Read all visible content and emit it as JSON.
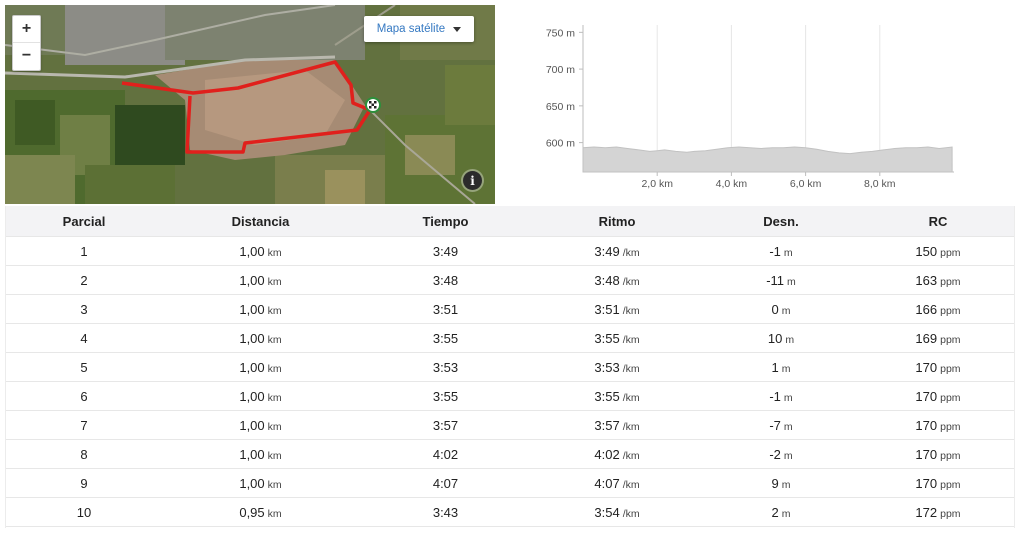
{
  "map": {
    "zoom_in_label": "+",
    "zoom_out_label": "−",
    "maptype_label": "Mapa satélite",
    "info_label": "i",
    "route_color": "#e0201c"
  },
  "chart_data": {
    "type": "area",
    "xlabel": "",
    "ylabel": "",
    "x_ticks": [
      "2,0 km",
      "4,0 km",
      "6,0 km",
      "8,0 km"
    ],
    "x_tick_values": [
      2,
      4,
      6,
      8
    ],
    "y_ticks": [
      "600 m",
      "650 m",
      "700 m",
      "750 m"
    ],
    "y_tick_values": [
      600,
      650,
      700,
      750
    ],
    "xlim": [
      0,
      10
    ],
    "ylim": [
      560,
      760
    ],
    "grid": true,
    "fill_color": "#d4d4d4",
    "series": [
      {
        "x": [
          0,
          0.3,
          0.6,
          0.9,
          1.2,
          1.5,
          1.8,
          2.0,
          2.2,
          2.5,
          2.8,
          3.0,
          3.3,
          3.6,
          3.9,
          4.2,
          4.5,
          4.8,
          5.1,
          5.4,
          5.7,
          6.0,
          6.3,
          6.6,
          6.9,
          7.2,
          7.5,
          7.8,
          8.1,
          8.4,
          8.7,
          9.0,
          9.3,
          9.6,
          9.95
        ],
        "y": [
          593,
          594,
          593,
          594,
          592,
          590,
          588,
          589,
          590,
          588,
          587,
          588,
          589,
          591,
          593,
          594,
          593,
          592,
          593,
          593,
          594,
          593,
          591,
          588,
          586,
          585,
          587,
          588,
          590,
          592,
          593,
          593,
          594,
          592,
          594
        ]
      }
    ]
  },
  "table": {
    "headers": [
      "Parcial",
      "Distancia",
      "Tiempo",
      "Ritmo",
      "Desn.",
      "RC"
    ],
    "rows": [
      {
        "split": "1",
        "distance": "1,00",
        "distance_unit": "km",
        "time": "3:49",
        "pace": "3:49",
        "pace_unit": "/km",
        "elev": "-1",
        "elev_unit": "m",
        "hr": "150",
        "hr_unit": "ppm"
      },
      {
        "split": "2",
        "distance": "1,00",
        "distance_unit": "km",
        "time": "3:48",
        "pace": "3:48",
        "pace_unit": "/km",
        "elev": "-11",
        "elev_unit": "m",
        "hr": "163",
        "hr_unit": "ppm"
      },
      {
        "split": "3",
        "distance": "1,00",
        "distance_unit": "km",
        "time": "3:51",
        "pace": "3:51",
        "pace_unit": "/km",
        "elev": "0",
        "elev_unit": "m",
        "hr": "166",
        "hr_unit": "ppm"
      },
      {
        "split": "4",
        "distance": "1,00",
        "distance_unit": "km",
        "time": "3:55",
        "pace": "3:55",
        "pace_unit": "/km",
        "elev": "10",
        "elev_unit": "m",
        "hr": "169",
        "hr_unit": "ppm"
      },
      {
        "split": "5",
        "distance": "1,00",
        "distance_unit": "km",
        "time": "3:53",
        "pace": "3:53",
        "pace_unit": "/km",
        "elev": "1",
        "elev_unit": "m",
        "hr": "170",
        "hr_unit": "ppm"
      },
      {
        "split": "6",
        "distance": "1,00",
        "distance_unit": "km",
        "time": "3:55",
        "pace": "3:55",
        "pace_unit": "/km",
        "elev": "-1",
        "elev_unit": "m",
        "hr": "170",
        "hr_unit": "ppm"
      },
      {
        "split": "7",
        "distance": "1,00",
        "distance_unit": "km",
        "time": "3:57",
        "pace": "3:57",
        "pace_unit": "/km",
        "elev": "-7",
        "elev_unit": "m",
        "hr": "170",
        "hr_unit": "ppm"
      },
      {
        "split": "8",
        "distance": "1,00",
        "distance_unit": "km",
        "time": "4:02",
        "pace": "4:02",
        "pace_unit": "/km",
        "elev": "-2",
        "elev_unit": "m",
        "hr": "170",
        "hr_unit": "ppm"
      },
      {
        "split": "9",
        "distance": "1,00",
        "distance_unit": "km",
        "time": "4:07",
        "pace": "4:07",
        "pace_unit": "/km",
        "elev": "9",
        "elev_unit": "m",
        "hr": "170",
        "hr_unit": "ppm"
      },
      {
        "split": "10",
        "distance": "0,95",
        "distance_unit": "km",
        "time": "3:43",
        "pace": "3:54",
        "pace_unit": "/km",
        "elev": "2",
        "elev_unit": "m",
        "hr": "172",
        "hr_unit": "ppm"
      }
    ]
  }
}
